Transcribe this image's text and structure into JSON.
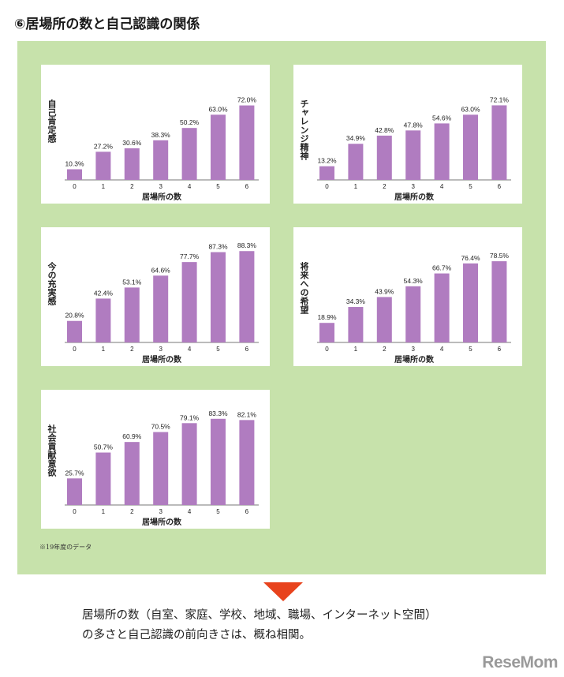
{
  "page": {
    "title": "⑥居場所の数と自己認識の関係",
    "footnote": "※19年度のデータ",
    "conclusion_line1": "居場所の数（自室、家庭、学校、地域、職場、インターネット空間）",
    "conclusion_line2": "の多さと自己認識の前向きさは、概ね相関。",
    "logo": "ReseMom"
  },
  "colors": {
    "bar": "#b07cc0",
    "panel": "#c7e2ab",
    "arrow": "#e8431d"
  },
  "chart_data": [
    {
      "type": "bar",
      "ylabel": "自己肯定感",
      "xlabel": "居場所の数",
      "categories": [
        "0",
        "1",
        "2",
        "3",
        "4",
        "5",
        "6"
      ],
      "values": [
        10.3,
        27.2,
        30.6,
        38.3,
        50.2,
        63.0,
        72.0
      ],
      "labels": [
        "10.3%",
        "27.2%",
        "30.6%",
        "38.3%",
        "50.2%",
        "63.0%",
        "72.0%"
      ]
    },
    {
      "type": "bar",
      "ylabel": "チャレンジ精神",
      "xlabel": "居場所の数",
      "categories": [
        "0",
        "1",
        "2",
        "3",
        "4",
        "5",
        "6"
      ],
      "values": [
        13.2,
        34.9,
        42.8,
        47.8,
        54.6,
        63.0,
        72.1
      ],
      "labels": [
        "13.2%",
        "34.9%",
        "42.8%",
        "47.8%",
        "54.6%",
        "63.0%",
        "72.1%"
      ]
    },
    {
      "type": "bar",
      "ylabel": "今の充実感",
      "xlabel": "居場所の数",
      "categories": [
        "0",
        "1",
        "2",
        "3",
        "4",
        "5",
        "6"
      ],
      "values": [
        20.8,
        42.4,
        53.1,
        64.6,
        77.7,
        87.3,
        88.3
      ],
      "labels": [
        "20.8%",
        "42.4%",
        "53.1%",
        "64.6%",
        "77.7%",
        "87.3%",
        "88.3%"
      ]
    },
    {
      "type": "bar",
      "ylabel": "将来への希望",
      "xlabel": "居場所の数",
      "categories": [
        "0",
        "1",
        "2",
        "3",
        "4",
        "5",
        "6"
      ],
      "values": [
        18.9,
        34.3,
        43.9,
        54.3,
        66.7,
        76.4,
        78.5
      ],
      "labels": [
        "18.9%",
        "34.3%",
        "43.9%",
        "54.3%",
        "66.7%",
        "76.4%",
        "78.5%"
      ]
    },
    {
      "type": "bar",
      "ylabel": "社会貢献意欲",
      "xlabel": "居場所の数",
      "categories": [
        "0",
        "1",
        "2",
        "3",
        "4",
        "5",
        "6"
      ],
      "values": [
        25.7,
        50.7,
        60.9,
        70.5,
        79.1,
        83.3,
        82.1
      ],
      "labels": [
        "25.7%",
        "50.7%",
        "60.9%",
        "70.5%",
        "79.1%",
        "83.3%",
        "82.1%"
      ]
    }
  ]
}
